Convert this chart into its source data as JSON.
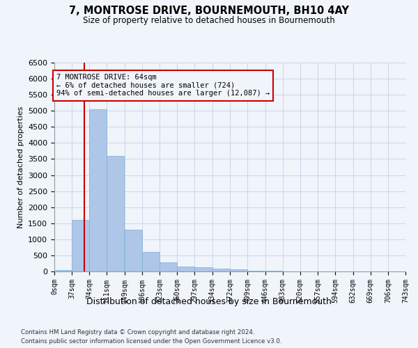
{
  "title": "7, MONTROSE DRIVE, BOURNEMOUTH, BH10 4AY",
  "subtitle": "Size of property relative to detached houses in Bournemouth",
  "xlabel": "Distribution of detached houses by size in Bournemouth",
  "ylabel": "Number of detached properties",
  "footnote1": "Contains HM Land Registry data © Crown copyright and database right 2024.",
  "footnote2": "Contains public sector information licensed under the Open Government Licence v3.0.",
  "annotation_text": "7 MONTROSE DRIVE: 64sqm\n← 6% of detached houses are smaller (724)\n94% of semi-detached houses are larger (12,087) →",
  "property_size": 64,
  "bar_color": "#aec6e8",
  "bar_edge_color": "#7aafd4",
  "vline_color": "#cc0000",
  "annotation_box_color": "#cc0000",
  "grid_color": "#ccd5e8",
  "background_color": "#f0f4fb",
  "ylim": [
    0,
    6500
  ],
  "bins": [
    0,
    37,
    74,
    111,
    149,
    186,
    223,
    260,
    297,
    334,
    372,
    409,
    446,
    483,
    520,
    557,
    594,
    632,
    669,
    706,
    743
  ],
  "bin_labels": [
    "0sqm",
    "37sqm",
    "74sqm",
    "111sqm",
    "149sqm",
    "186sqm",
    "223sqm",
    "260sqm",
    "297sqm",
    "334sqm",
    "372sqm",
    "409sqm",
    "446sqm",
    "483sqm",
    "520sqm",
    "557sqm",
    "594sqm",
    "632sqm",
    "669sqm",
    "706sqm",
    "743sqm"
  ],
  "bar_heights": [
    50,
    1600,
    5050,
    3600,
    1300,
    600,
    275,
    150,
    120,
    85,
    55,
    30,
    15,
    8,
    4,
    2,
    1,
    1,
    0,
    0
  ],
  "yticks": [
    0,
    500,
    1000,
    1500,
    2000,
    2500,
    3000,
    3500,
    4000,
    4500,
    5000,
    5500,
    6000,
    6500
  ]
}
